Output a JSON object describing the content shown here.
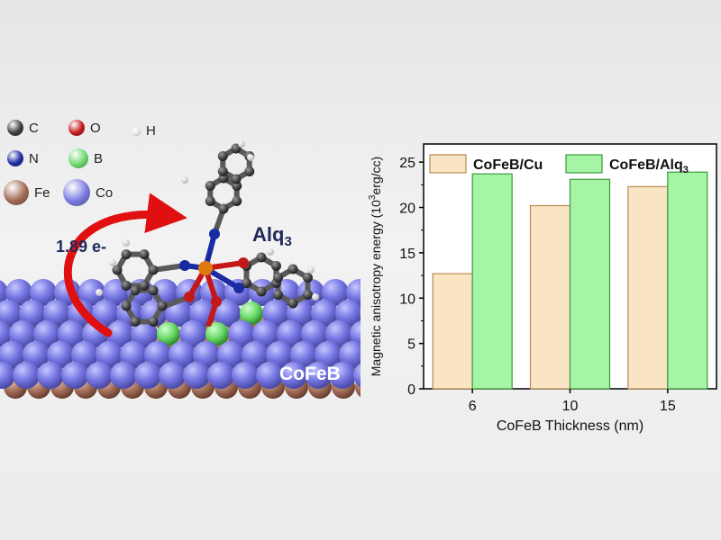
{
  "legend": {
    "items": [
      {
        "label": "C",
        "color": "#3a3a3a"
      },
      {
        "label": "O",
        "color": "#c41818"
      },
      {
        "label": "H",
        "color": "#e6e6e6"
      },
      {
        "label": "N",
        "color": "#1a2aa0"
      },
      {
        "label": "B",
        "color": "#6ad86a"
      },
      {
        "label": "Fe",
        "color": "#a06a55"
      },
      {
        "label": "Co",
        "color": "#7a7ae0"
      }
    ]
  },
  "illustration": {
    "charge_label": "1.89 e-",
    "molecule_label": "Alq",
    "molecule_subscript": "3",
    "substrate_label": "CoFeB"
  },
  "chart_data": {
    "type": "bar",
    "categories": [
      "6",
      "10",
      "15"
    ],
    "series": [
      {
        "name": "CoFeB/Cu",
        "values": [
          12.7,
          20.2,
          22.3
        ],
        "color": "#f9e4c4",
        "stroke": "#b88a50"
      },
      {
        "name": "CoFeB/Alq3",
        "name_main": "CoFeB/Alq",
        "name_sub": "3",
        "values": [
          23.7,
          23.1,
          23.9
        ],
        "color": "#a6f4a6",
        "stroke": "#3a9a3a"
      }
    ],
    "xlabel": "CoFeB Thickness (nm)",
    "ylabel_pre": "Magnetic anisotropy energy (10",
    "ylabel_sup": "3",
    "ylabel_post": "erg/cc)",
    "ylim": [
      0,
      27
    ],
    "yticks": [
      0,
      5,
      10,
      15,
      20,
      25
    ],
    "legend_position": "top"
  }
}
